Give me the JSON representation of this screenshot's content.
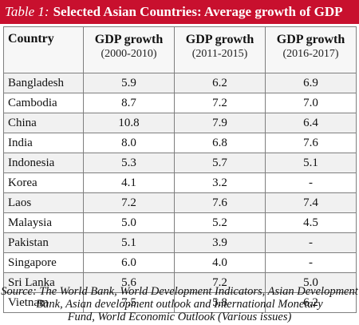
{
  "title": {
    "prefix": "Table 1:",
    "text": "Selected Asian Countries: Average growth of GDP"
  },
  "colors": {
    "title_bar": "#c8102e",
    "title_text": "#ffffff",
    "row_shade": "#f1f1f1",
    "grid": "#7f7f7f"
  },
  "table": {
    "country_header": "Country",
    "columns": [
      {
        "label": "GDP growth",
        "period": "(2000-2010)"
      },
      {
        "label": "GDP growth",
        "period": "(2011-2015)"
      },
      {
        "label": "GDP growth",
        "period": "(2016-2017)"
      }
    ],
    "rows": [
      {
        "country": "Bangladesh",
        "values": [
          "5.9",
          "6.2",
          "6.9"
        ]
      },
      {
        "country": "Cambodia",
        "values": [
          "8.7",
          "7.2",
          "7.0"
        ]
      },
      {
        "country": "China",
        "values": [
          "10.8",
          "7.9",
          "6.4"
        ]
      },
      {
        "country": "India",
        "values": [
          "8.0",
          "6.8",
          "7.6"
        ]
      },
      {
        "country": "Indonesia",
        "values": [
          "5.3",
          "5.7",
          "5.1"
        ]
      },
      {
        "country": "Korea",
        "values": [
          "4.1",
          "3.2",
          "-"
        ]
      },
      {
        "country": "Laos",
        "values": [
          "7.2",
          "7.6",
          "7.4"
        ]
      },
      {
        "country": "Malaysia",
        "values": [
          "5.0",
          "5.2",
          "4.5"
        ]
      },
      {
        "country": "Pakistan",
        "values": [
          "5.1",
          "3.9",
          "-"
        ]
      },
      {
        "country": "Singapore",
        "values": [
          "6.0",
          "4.0",
          "-"
        ]
      },
      {
        "country": "Sri Lanka",
        "values": [
          "5.6",
          "7.2",
          "5.0"
        ]
      },
      {
        "country": "Vietnam",
        "values": [
          "7.5",
          "5.8",
          "6.2"
        ]
      }
    ]
  },
  "source": {
    "lines": [
      "Source: The World Bank, World Development Indicators, Asian Development",
      "Bank, Asian development outlook and International Monetary",
      "Fund, World Economic Outlook (Various issues)"
    ]
  }
}
